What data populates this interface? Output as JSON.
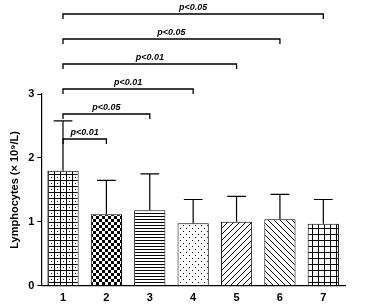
{
  "chart_data": {
    "type": "bar",
    "categories": [
      "1",
      "2",
      "3",
      "4",
      "5",
      "6",
      "7"
    ],
    "values": [
      1.8,
      1.12,
      1.18,
      0.98,
      1.0,
      1.04,
      0.97
    ],
    "errors": [
      0.78,
      0.53,
      0.57,
      0.37,
      0.4,
      0.39,
      0.38
    ],
    "y_label": "Lymphocytes (× 10⁹/L)",
    "ylim": [
      0,
      3
    ],
    "yticks": [
      0,
      1,
      2,
      3
    ],
    "color": "#000000",
    "grid": false,
    "annotations": [
      {
        "from": "1",
        "to": "2",
        "label": "p<0.01"
      },
      {
        "from": "1",
        "to": "3",
        "label": "p<0.05"
      },
      {
        "from": "1",
        "to": "4",
        "label": "p<0.01"
      },
      {
        "from": "1",
        "to": "5",
        "label": "p<0.01"
      },
      {
        "from": "1",
        "to": "6",
        "label": "p<0.05"
      },
      {
        "from": "1",
        "to": "7",
        "label": "p<0.05"
      }
    ]
  }
}
